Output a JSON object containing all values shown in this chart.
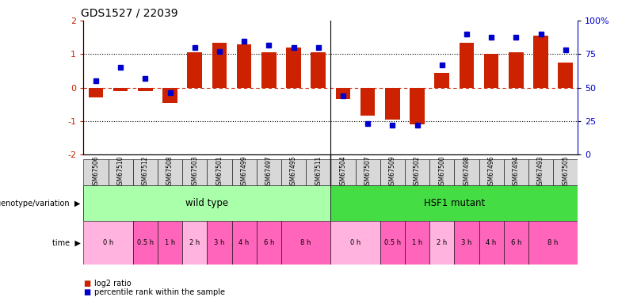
{
  "title": "GDS1527 / 22039",
  "samples": [
    "GSM67506",
    "GSM67510",
    "GSM67512",
    "GSM67508",
    "GSM67503",
    "GSM67501",
    "GSM67499",
    "GSM67497",
    "GSM67495",
    "GSM67511",
    "GSM67504",
    "GSM67507",
    "GSM67509",
    "GSM67502",
    "GSM67500",
    "GSM67498",
    "GSM67496",
    "GSM67494",
    "GSM67493",
    "GSM67505"
  ],
  "log2_ratio": [
    -0.3,
    -0.1,
    -0.1,
    -0.45,
    1.05,
    1.35,
    1.3,
    1.05,
    1.2,
    1.05,
    -0.35,
    -0.85,
    -0.95,
    -1.1,
    0.45,
    1.35,
    1.0,
    1.05,
    1.55,
    0.75
  ],
  "percentile": [
    55,
    65,
    57,
    46,
    80,
    77,
    85,
    82,
    80,
    80,
    44,
    23,
    22,
    22,
    67,
    90,
    88,
    88,
    90,
    78
  ],
  "wt_color": "#AAFFAA",
  "hsf1_color": "#44DD44",
  "time_color_light": "#FFB3DE",
  "time_color_dark": "#FF66BB",
  "bar_color": "#CC2200",
  "dot_color": "#0000CC",
  "ylim": [
    -2,
    2
  ],
  "y2lim": [
    0,
    100
  ],
  "yticks": [
    -2,
    -1,
    0,
    1,
    2
  ],
  "y2ticks": [
    0,
    25,
    50,
    75,
    100
  ],
  "hline_color": "#CC2200",
  "wt_time_blocks": [
    [
      -0.5,
      1.5,
      "0 h",
      false
    ],
    [
      1.5,
      2.5,
      "0.5 h",
      true
    ],
    [
      2.5,
      3.5,
      "1 h",
      true
    ],
    [
      3.5,
      4.5,
      "2 h",
      false
    ],
    [
      4.5,
      5.5,
      "3 h",
      true
    ],
    [
      5.5,
      6.5,
      "4 h",
      true
    ],
    [
      6.5,
      7.5,
      "6 h",
      true
    ],
    [
      7.5,
      9.5,
      "8 h",
      true
    ]
  ],
  "hsf1_time_blocks": [
    [
      9.5,
      11.5,
      "0 h",
      false
    ],
    [
      11.5,
      12.5,
      "0.5 h",
      true
    ],
    [
      12.5,
      13.5,
      "1 h",
      true
    ],
    [
      13.5,
      14.5,
      "2 h",
      false
    ],
    [
      14.5,
      15.5,
      "3 h",
      true
    ],
    [
      15.5,
      16.5,
      "4 h",
      true
    ],
    [
      16.5,
      17.5,
      "6 h",
      true
    ],
    [
      17.5,
      19.5,
      "8 h",
      true
    ]
  ]
}
